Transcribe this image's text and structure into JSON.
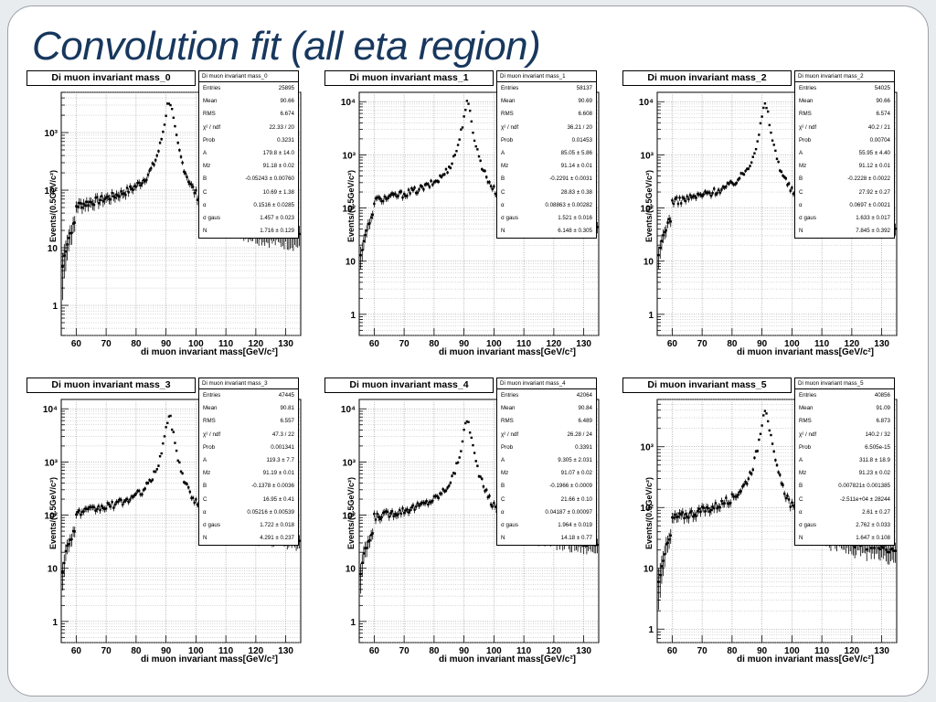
{
  "slide": {
    "title": "Convolution fit (all eta region)"
  },
  "chart_data": [
    {
      "type": "scatter",
      "title": "Di muon invariant mass_0",
      "xlabel": "di muon invariant mass[GeV/c²]",
      "ylabel": "Events/(0.5GeV/c²)",
      "xlim": [
        55,
        135
      ],
      "ylim": [
        0.3,
        5000
      ],
      "log_y": true,
      "yticks": [
        1,
        10,
        100,
        1000
      ],
      "ytick_labels": [
        "1",
        "10",
        "10²",
        "10³"
      ],
      "xticks": [
        "60",
        "70",
        "80",
        "90",
        "100",
        "110",
        "120",
        "130"
      ],
      "peak": 3500,
      "stats_name": "Di muon invariant mass_0",
      "stats": [
        [
          "Entries",
          "25895"
        ],
        [
          "Mean",
          "90.66"
        ],
        [
          "RMS",
          "6.674"
        ],
        [
          "χ² / ndf",
          "22.33 / 20"
        ],
        [
          "Prob",
          "0.3231"
        ],
        [
          "A",
          "179.8 ± 14.0"
        ],
        [
          "Mz",
          "91.18 ± 0.02"
        ],
        [
          "B",
          "-0.05243 ± 0.00760"
        ],
        [
          "C",
          "10.69 ± 1.38"
        ],
        [
          "α",
          "0.1516 ± 0.0285"
        ],
        [
          "σ gaus",
          "1.457 ± 0.023"
        ],
        [
          "N",
          "1.716 ± 0.129"
        ]
      ]
    },
    {
      "type": "scatter",
      "title": "Di muon invariant mass_1",
      "xlabel": "di muon invariant mass[GeV/c²]",
      "ylabel": "Events/(0.5GeV/c²)",
      "xlim": [
        55,
        135
      ],
      "ylim": [
        0.4,
        15000
      ],
      "log_y": true,
      "yticks": [
        1,
        10,
        100,
        1000,
        10000
      ],
      "ytick_labels": [
        "1",
        "10",
        "10²",
        "10³",
        "10⁴"
      ],
      "xticks": [
        "60",
        "70",
        "80",
        "90",
        "100",
        "110",
        "120",
        "130"
      ],
      "peak": 9000,
      "stats_name": "Di muon invariant mass_1",
      "stats": [
        [
          "Entries",
          "58137"
        ],
        [
          "Mean",
          "90.69"
        ],
        [
          "RMS",
          "6.608"
        ],
        [
          "χ² / ndf",
          "36.21 / 20"
        ],
        [
          "Prob",
          "0.01453"
        ],
        [
          "A",
          "85.05 ± 5.86"
        ],
        [
          "Mz",
          "91.14 ± 0.01"
        ],
        [
          "B",
          "-0.2291 ± 0.0031"
        ],
        [
          "C",
          "28.83 ± 0.38"
        ],
        [
          "α",
          "0.08863 ± 0.00282"
        ],
        [
          "σ gaus",
          "1.521 ± 0.016"
        ],
        [
          "N",
          "6.148 ± 0.305"
        ]
      ]
    },
    {
      "type": "scatter",
      "title": "Di muon invariant mass_2",
      "xlabel": "di muon invariant mass[GeV/c²]",
      "ylabel": "Events/(0.5GeV/c²)",
      "xlim": [
        55,
        135
      ],
      "ylim": [
        0.4,
        15000
      ],
      "log_y": true,
      "yticks": [
        1,
        10,
        100,
        1000,
        10000
      ],
      "ytick_labels": [
        "1",
        "10",
        "10²",
        "10³",
        "10⁴"
      ],
      "xticks": [
        "60",
        "70",
        "80",
        "90",
        "100",
        "110",
        "120",
        "130"
      ],
      "peak": 8500,
      "stats_name": "Di muon invariant mass_2",
      "stats": [
        [
          "Entries",
          "54025"
        ],
        [
          "Mean",
          "90.66"
        ],
        [
          "RMS",
          "6.574"
        ],
        [
          "χ² / ndf",
          "40.2 / 21"
        ],
        [
          "Prob",
          "0.00704"
        ],
        [
          "A",
          "55.95 ± 4.40"
        ],
        [
          "Mz",
          "91.12 ± 0.01"
        ],
        [
          "B",
          "-0.2228 ± 0.0022"
        ],
        [
          "C",
          "27.92 ± 0.27"
        ],
        [
          "α",
          "0.0697 ± 0.0021"
        ],
        [
          "σ gaus",
          "1.633 ± 0.017"
        ],
        [
          "N",
          "7.845 ± 0.392"
        ]
      ]
    },
    {
      "type": "scatter",
      "title": "Di muon invariant mass_3",
      "xlabel": "di muon invariant mass[GeV/c²]",
      "ylabel": "Events/(0.5GeV/c²)",
      "xlim": [
        55,
        135
      ],
      "ylim": [
        0.4,
        15000
      ],
      "log_y": true,
      "yticks": [
        1,
        10,
        100,
        1000,
        10000
      ],
      "ytick_labels": [
        "1",
        "10",
        "10²",
        "10³",
        "10⁴"
      ],
      "xticks": [
        "60",
        "70",
        "80",
        "90",
        "100",
        "110",
        "120",
        "130"
      ],
      "peak": 7000,
      "stats_name": "Di muon invariant mass_3",
      "stats": [
        [
          "Entries",
          "47445"
        ],
        [
          "Mean",
          "90.81"
        ],
        [
          "RMS",
          "6.557"
        ],
        [
          "χ² / ndf",
          "47.3 / 22"
        ],
        [
          "Prob",
          "0.001341"
        ],
        [
          "A",
          "119.3 ± 7.7"
        ],
        [
          "Mz",
          "91.19 ± 0.01"
        ],
        [
          "B",
          "-0.1378 ± 0.0036"
        ],
        [
          "C",
          "16.95 ± 0.41"
        ],
        [
          "α",
          "0.05216 ± 0.00539"
        ],
        [
          "σ gaus",
          "1.722 ± 0.018"
        ],
        [
          "N",
          "4.291 ± 0.237"
        ]
      ]
    },
    {
      "type": "scatter",
      "title": "Di muon invariant mass_4",
      "xlabel": "di muon invariant mass[GeV/c²]",
      "ylabel": "Events/(0.5GeV/c²)",
      "xlim": [
        55,
        135
      ],
      "ylim": [
        0.4,
        15000
      ],
      "log_y": true,
      "yticks": [
        1,
        10,
        100,
        1000,
        10000
      ],
      "ytick_labels": [
        "1",
        "10",
        "10²",
        "10³",
        "10⁴"
      ],
      "xticks": [
        "60",
        "70",
        "80",
        "90",
        "100",
        "110",
        "120",
        "130"
      ],
      "peak": 6000,
      "stats_name": "Di muon invariant mass_4",
      "stats": [
        [
          "Entries",
          "42064"
        ],
        [
          "Mean",
          "90.84"
        ],
        [
          "RMS",
          "6.489"
        ],
        [
          "χ² / ndf",
          "26.28 / 24"
        ],
        [
          "Prob",
          "0.3391"
        ],
        [
          "A",
          "9.305 ± 2.031"
        ],
        [
          "Mz",
          "91.07 ± 0.02"
        ],
        [
          "B",
          "-0.1966 ± 0.0009"
        ],
        [
          "C",
          "21.66 ± 0.10"
        ],
        [
          "α",
          "0.04187 ± 0.00097"
        ],
        [
          "σ gaus",
          "1.964 ± 0.019"
        ],
        [
          "N",
          "14.18 ± 0.77"
        ]
      ]
    },
    {
      "type": "scatter",
      "title": "Di muon invariant mass_5",
      "xlabel": "di muon invariant mass[GeV/c²]",
      "ylabel": "Events/(0.5GeV/c²)",
      "xlim": [
        55,
        135
      ],
      "ylim": [
        0.6,
        6000
      ],
      "log_y": true,
      "yticks": [
        1,
        10,
        100,
        1000
      ],
      "ytick_labels": [
        "1",
        "10",
        "10²",
        "10³"
      ],
      "xticks": [
        "60",
        "70",
        "80",
        "90",
        "100",
        "110",
        "120",
        "130"
      ],
      "peak": 4300,
      "stats_name": "Di muon invariant mass_5",
      "stats": [
        [
          "Entries",
          "40856"
        ],
        [
          "Mean",
          "91.09"
        ],
        [
          "RMS",
          "6.873"
        ],
        [
          "χ² / ndf",
          "140.2 / 32"
        ],
        [
          "Prob",
          "6.505e-15"
        ],
        [
          "A",
          "311.8 ± 18.9"
        ],
        [
          "Mz",
          "91.23 ± 0.02"
        ],
        [
          "B",
          "0.007821± 0.001385"
        ],
        [
          "C",
          "-2.511e+04 ± 28244"
        ],
        [
          "α",
          "2.61 ± 0.27"
        ],
        [
          "σ gaus",
          "2.762 ± 0.033"
        ],
        [
          "N",
          "1.647 ± 0.108"
        ]
      ]
    }
  ]
}
